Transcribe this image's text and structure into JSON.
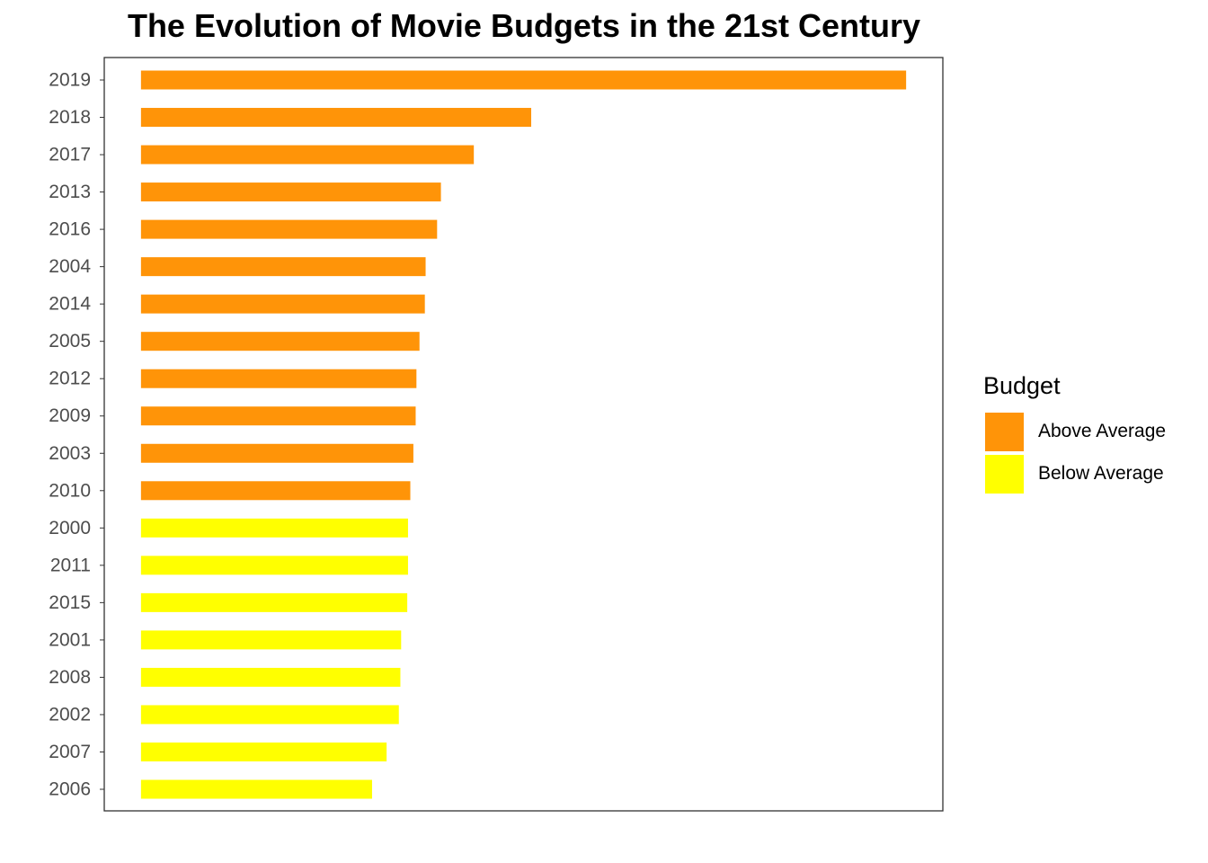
{
  "chart_data": {
    "type": "bar",
    "orientation": "horizontal",
    "title": "The Evolution of Movie Budgets in the 21st Century",
    "xlabel": "",
    "ylabel": "",
    "x_ticks_visible": false,
    "grid": false,
    "legend_position": "right",
    "legend": {
      "title": "Budget",
      "items": [
        {
          "label": "Above Average",
          "color": "#ff9408"
        },
        {
          "label": "Below Average",
          "color": "#ffff00"
        }
      ]
    },
    "categories": [
      "2019",
      "2018",
      "2017",
      "2013",
      "2016",
      "2004",
      "2014",
      "2005",
      "2012",
      "2009",
      "2003",
      "2010",
      "2000",
      "2011",
      "2015",
      "2001",
      "2008",
      "2002",
      "2007",
      "2006"
    ],
    "values": [
      100,
      51,
      43.5,
      39.2,
      38.7,
      37.2,
      37.1,
      36.4,
      36,
      35.9,
      35.6,
      35.2,
      34.9,
      34.9,
      34.8,
      34,
      33.9,
      33.7,
      32.1,
      30.2
    ],
    "groups": [
      "Above Average",
      "Above Average",
      "Above Average",
      "Above Average",
      "Above Average",
      "Above Average",
      "Above Average",
      "Above Average",
      "Above Average",
      "Above Average",
      "Above Average",
      "Above Average",
      "Below Average",
      "Below Average",
      "Below Average",
      "Below Average",
      "Below Average",
      "Below Average",
      "Below Average",
      "Below Average"
    ],
    "xlim": [
      -4.8,
      104.8
    ]
  }
}
